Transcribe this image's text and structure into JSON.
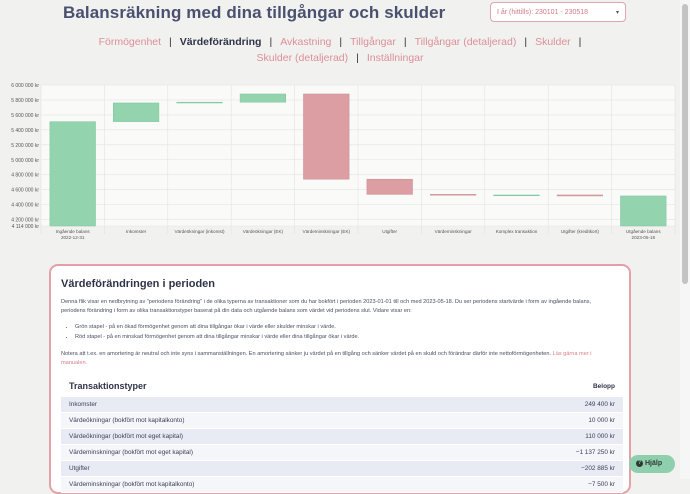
{
  "page": {
    "title": "Balansräkning med dina tillgångar och skulder"
  },
  "period_select": {
    "value": "I år (hittills): 230101 - 230518"
  },
  "nav": {
    "row1": [
      "Förmögenhet",
      "Värdeförändring",
      "Avkastning",
      "Tillgångar",
      "Tillgångar (detaljerad)",
      "Skulder"
    ],
    "row2": [
      "Skulder (detaljerad)",
      "Inställningar"
    ],
    "active": "Värdeförändring",
    "separator": "|"
  },
  "colors": {
    "positive": "#93d3ad",
    "negative": "#dc9ea2",
    "accent": "#dc8f98",
    "bar_stroke_pos": "#7ec59c",
    "bar_stroke_neg": "#c98b90"
  },
  "chart_data": {
    "type": "bar",
    "subtype": "waterfall",
    "ylim": [
      4114000,
      6000000
    ],
    "yticks": [
      6000000,
      5800000,
      5600000,
      5400000,
      5200000,
      5000000,
      4800000,
      4600000,
      4400000,
      4200000,
      4114000
    ],
    "ytick_labels": [
      "6 000 000 kr",
      "5 800 000 kr",
      "5 600 000 kr",
      "5 400 000 kr",
      "5 200 000 kr",
      "5 000 000 kr",
      "4 800 000 kr",
      "4 600 000 kr",
      "4 400 000 kr",
      "4 200 000 kr",
      "4 114 000 kr"
    ],
    "categories": [
      [
        "Ingående balans",
        "2022-12-31"
      ],
      [
        "Inkomster"
      ],
      [
        "Värdeökningar (inkomst)"
      ],
      [
        "Värdeökningar (EK)"
      ],
      [
        "Värdeminskningar (EK)"
      ],
      [
        "Utgifter"
      ],
      [
        "Värdeminskningar"
      ],
      [
        "Komplex transaktion"
      ],
      [
        "Utgifter (kreditkort)"
      ],
      [
        "Utgående balans",
        "2023-05-18"
      ]
    ],
    "bars": [
      {
        "start": 4114000,
        "end": 5510000,
        "sign": "positive"
      },
      {
        "start": 5510000,
        "end": 5760000,
        "sign": "positive"
      },
      {
        "start": 5760000,
        "end": 5770000,
        "sign": "positive"
      },
      {
        "start": 5770000,
        "end": 5880000,
        "sign": "positive"
      },
      {
        "start": 5880000,
        "end": 4740000,
        "sign": "negative"
      },
      {
        "start": 4740000,
        "end": 4537000,
        "sign": "negative"
      },
      {
        "start": 4537000,
        "end": 4529000,
        "sign": "negative"
      },
      {
        "start": 4529000,
        "end": 4529000,
        "sign": "neutral"
      },
      {
        "start": 4529000,
        "end": 4516000,
        "sign": "negative"
      },
      {
        "start": 4114000,
        "end": 4516000,
        "sign": "positive"
      }
    ],
    "grid": true,
    "legend": "none"
  },
  "card": {
    "title": "Värdeförändringen i perioden",
    "intro": "Denna flik visar en nedbrytning av \"periodens förändring\" i de olika typerna av transaktioner som du har bokfört i perioden 2023-01-01 till och med 2023-05-18. Du ser periodens startvärde i form av ingående balans, periodens förändring i form av olika transaktionstyper baserat på din data och utgående balans som värdet vid periodens slut. Vidare visar en:",
    "bullets": [
      "Grön stapel - på en ökad förmögenhet genom att dina tillgångar ökar i värde eller skulder minskar i värde.",
      "Röd stapel - på en minskad förmögenhet genom att dina tillgångar minskar i värde eller dina tillgångar ökar i värde."
    ],
    "note": "Notera att t.ex. en amortering är neutral och inte syns i sammanställningen. En amortering sänker ju värdet på en tillgång och sänker värdet på en skuld och förändrar därför inte nettoförmögenheten.",
    "read_more": "Läs gärna mer i manualen."
  },
  "transactions": {
    "header_name": "Transaktionstyper",
    "header_amount": "Belopp",
    "rows": [
      {
        "name": "Inkomster",
        "amount": "249 400 kr"
      },
      {
        "name": "Värdeökningar (bokfört mot kapitalkonto)",
        "amount": "10 000 kr"
      },
      {
        "name": "Värdeökningar (bokfört mot eget kapital)",
        "amount": "110 000 kr"
      },
      {
        "name": "Värdeminskningar (bokfört mot eget kapital)",
        "amount": "−1 137 250 kr"
      },
      {
        "name": "Utgifter",
        "amount": "−202 885 kr"
      },
      {
        "name": "Värdeminskningar (bokfört mot kapitalkonto)",
        "amount": "−7 500 kr"
      }
    ]
  },
  "help": {
    "label": "Hjälp"
  }
}
